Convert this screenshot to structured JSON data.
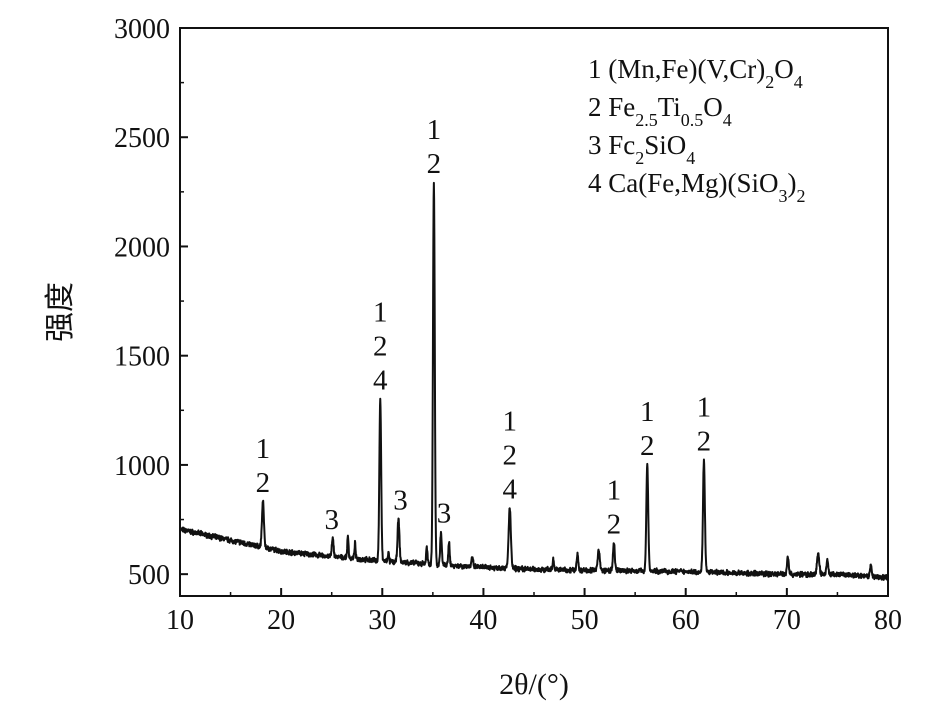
{
  "chart_data": {
    "type": "line",
    "xlabel": "2θ/(°)",
    "ylabel": "强度",
    "xlim": [
      10,
      80
    ],
    "ylim": [
      400,
      3000
    ],
    "x_ticks": [
      10,
      20,
      30,
      40,
      50,
      60,
      70,
      80
    ],
    "y_ticks": [
      500,
      1000,
      1500,
      2000,
      2500,
      3000
    ],
    "grid": false,
    "legend_position": "top-right",
    "legend": [
      {
        "num": "1",
        "parts": [
          [
            "(Mn,Fe)(V,Cr)",
            ""
          ],
          [
            "2",
            "sub"
          ],
          [
            "O",
            ""
          ],
          [
            "4",
            "sub"
          ]
        ]
      },
      {
        "num": "2",
        "parts": [
          [
            "Fe",
            ""
          ],
          [
            "2.5",
            "sub"
          ],
          [
            "Ti",
            ""
          ],
          [
            "0.5",
            "sub"
          ],
          [
            "O",
            ""
          ],
          [
            "4",
            "sub"
          ]
        ]
      },
      {
        "num": "3",
        "parts": [
          [
            "Fc",
            ""
          ],
          [
            "2",
            "sub"
          ],
          [
            "SiO",
            ""
          ],
          [
            "4",
            "sub"
          ]
        ]
      },
      {
        "num": "4",
        "parts": [
          [
            "Ca(Fe,Mg)(SiO",
            ""
          ],
          [
            "3",
            "sub"
          ],
          [
            ")",
            ""
          ],
          [
            "2",
            "sub"
          ]
        ]
      }
    ],
    "series": [
      {
        "baseline": [
          [
            10,
            705
          ],
          [
            15,
            655
          ],
          [
            20,
            605
          ],
          [
            25,
            580
          ],
          [
            30,
            560
          ],
          [
            35,
            545
          ],
          [
            40,
            532
          ],
          [
            45,
            522
          ],
          [
            50,
            518
          ],
          [
            55,
            515
          ],
          [
            60,
            512
          ],
          [
            65,
            505
          ],
          [
            70,
            500
          ],
          [
            75,
            498
          ],
          [
            80,
            485
          ]
        ],
        "peaks": [
          [
            18.2,
            830,
            0.18
          ],
          [
            25.1,
            660,
            0.16
          ],
          [
            26.6,
            670,
            0.12
          ],
          [
            27.3,
            640,
            0.1
          ],
          [
            29.8,
            1300,
            0.16
          ],
          [
            30.6,
            600,
            0.1
          ],
          [
            31.6,
            750,
            0.17
          ],
          [
            34.4,
            620,
            0.12
          ],
          [
            35.1,
            2290,
            0.16
          ],
          [
            35.8,
            690,
            0.14
          ],
          [
            36.6,
            650,
            0.12
          ],
          [
            38.9,
            575,
            0.14
          ],
          [
            42.6,
            800,
            0.2
          ],
          [
            46.9,
            570,
            0.12
          ],
          [
            49.3,
            595,
            0.14
          ],
          [
            51.4,
            615,
            0.18
          ],
          [
            52.9,
            640,
            0.16
          ],
          [
            56.2,
            1000,
            0.17
          ],
          [
            61.8,
            1020,
            0.17
          ],
          [
            70.1,
            580,
            0.16
          ],
          [
            73.1,
            595,
            0.2
          ],
          [
            74.0,
            565,
            0.16
          ],
          [
            78.3,
            540,
            0.16
          ]
        ]
      }
    ],
    "annotations": [
      {
        "x": 18.2,
        "y": 830,
        "lines": [
          "1",
          "2"
        ]
      },
      {
        "x": 25.0,
        "y": 660,
        "lines": [
          "3"
        ]
      },
      {
        "x": 29.8,
        "y": 1300,
        "lines": [
          "1",
          "2",
          "4"
        ]
      },
      {
        "x": 31.8,
        "y": 750,
        "lines": [
          "3"
        ]
      },
      {
        "x": 35.1,
        "y": 2290,
        "lines": [
          "1",
          "2"
        ]
      },
      {
        "x": 36.1,
        "y": 690,
        "lines": [
          "3"
        ]
      },
      {
        "x": 42.6,
        "y": 800,
        "lines": [
          "1",
          "2",
          "4"
        ]
      },
      {
        "x": 52.9,
        "y": 640,
        "lines": [
          "1",
          "2"
        ]
      },
      {
        "x": 56.2,
        "y": 1000,
        "lines": [
          "1",
          "2"
        ]
      },
      {
        "x": 61.8,
        "y": 1020,
        "lines": [
          "1",
          "2"
        ]
      }
    ]
  }
}
